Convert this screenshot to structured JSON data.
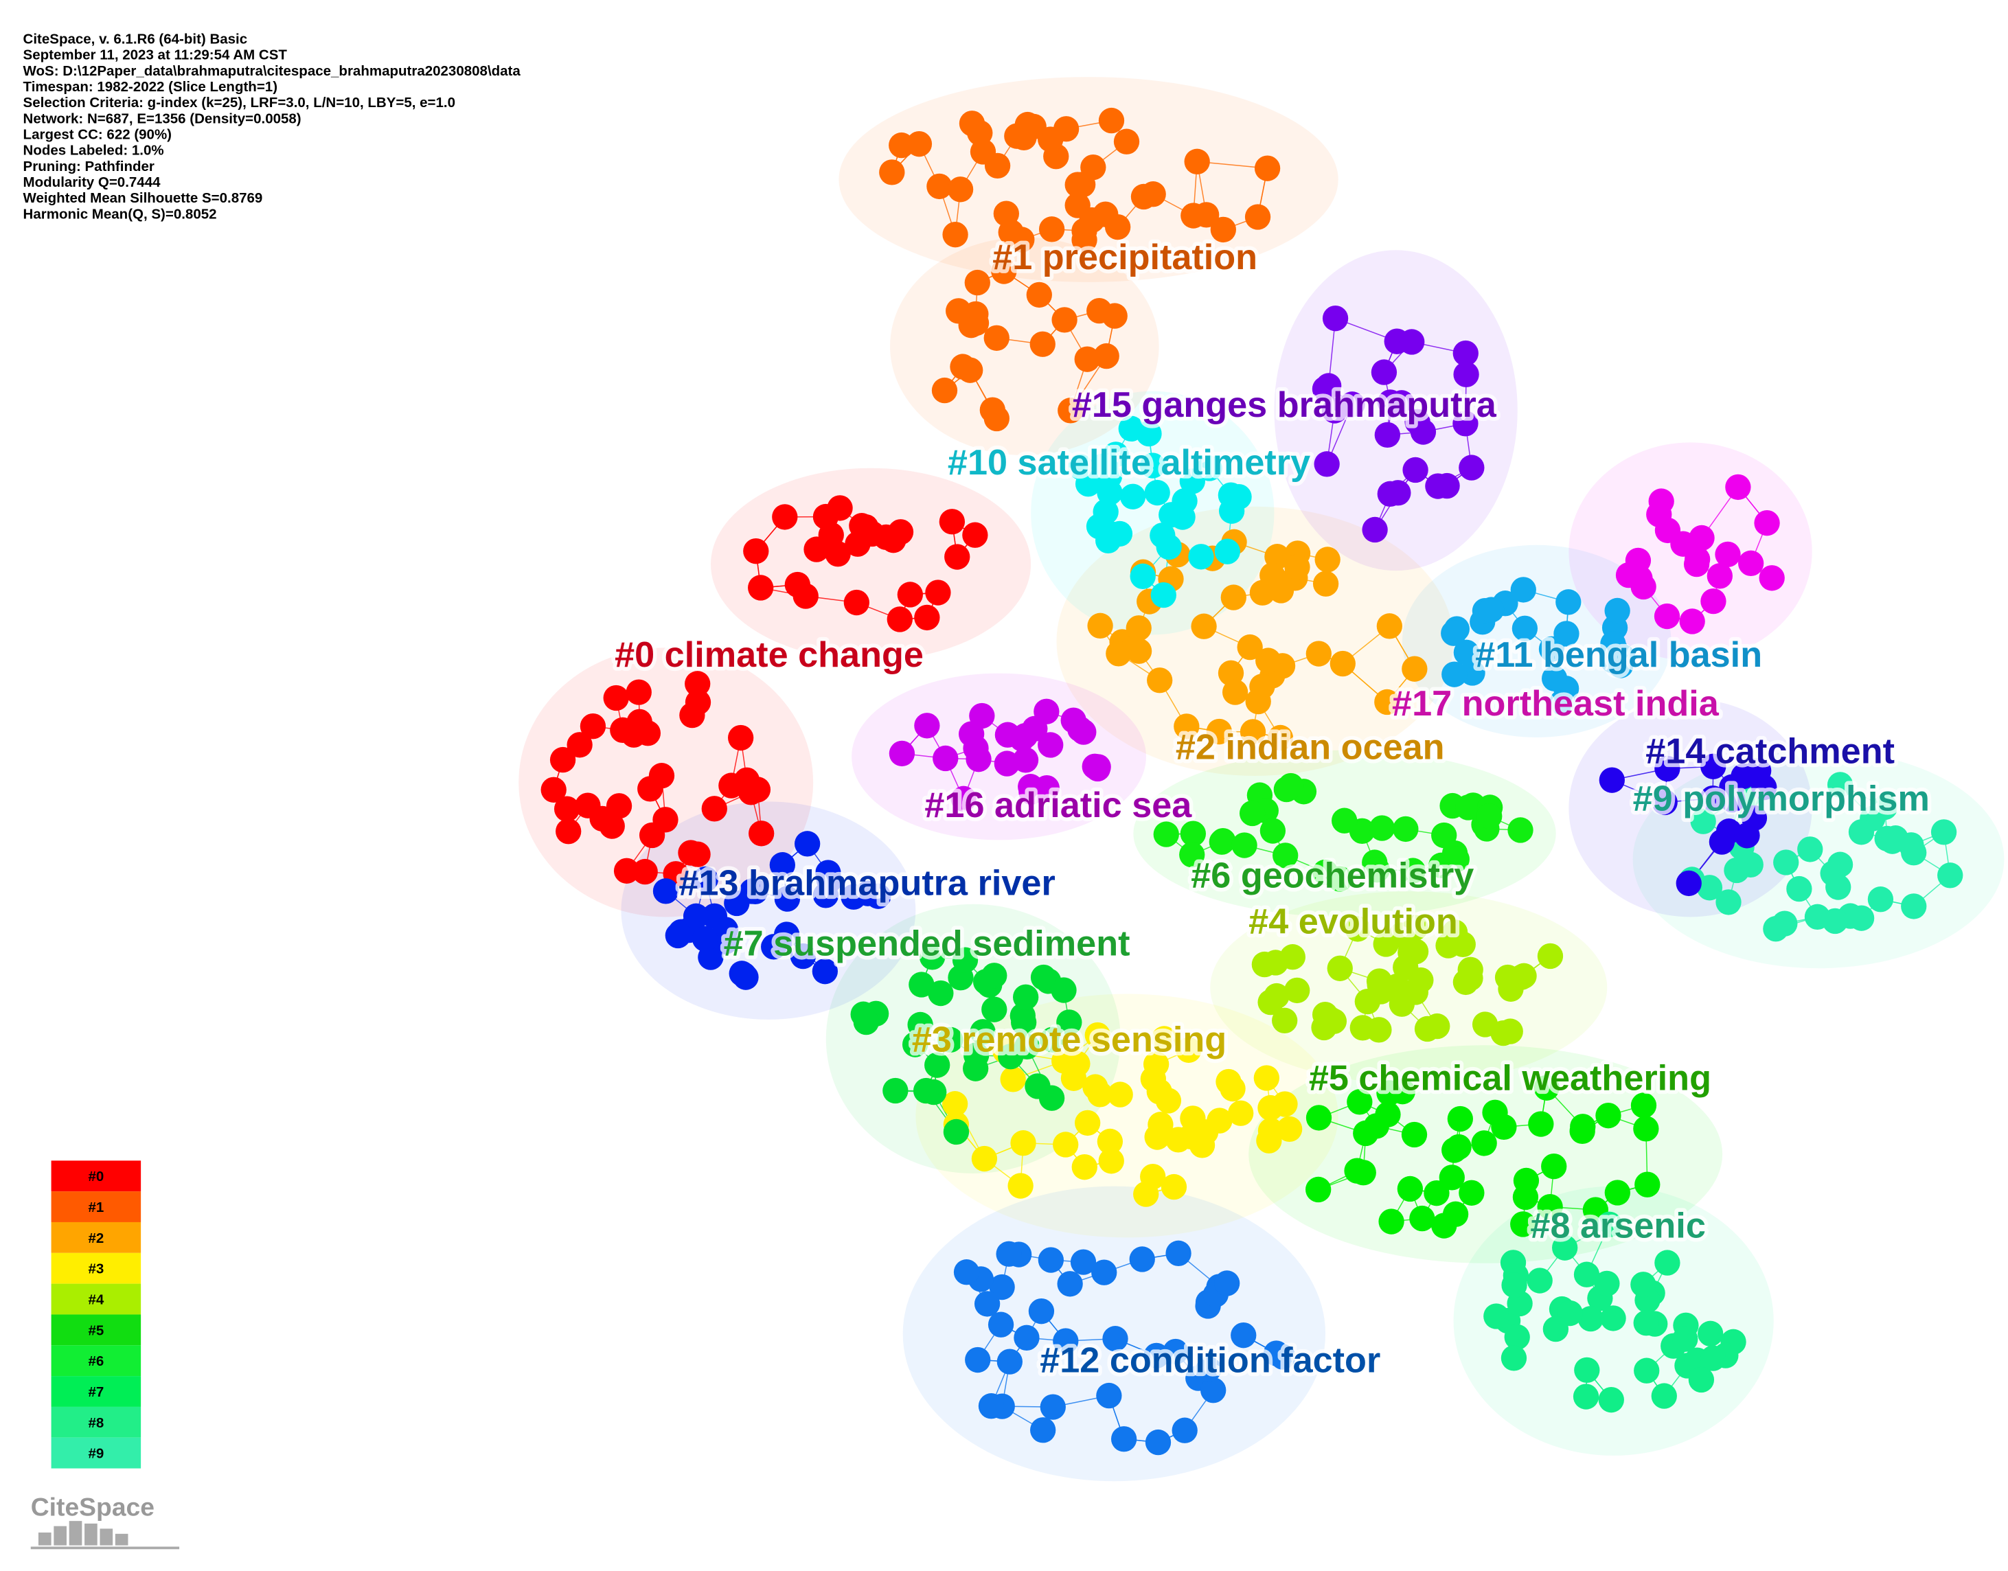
{
  "header": {
    "lines": [
      "CiteSpace, v. 6.1.R6 (64-bit) Basic",
      "September 11, 2023 at 11:29:54 AM CST",
      "WoS: D:\\12Paper_data\\brahmaputra\\citespace_brahmaputra20230808\\data",
      "Timespan: 1982-2022 (Slice Length=1)",
      "Selection Criteria: g-index (k=25), LRF=3.0, L/N=10, LBY=5, e=1.0",
      "Network: N=687, E=1356 (Density=0.0058)",
      "Largest CC: 622 (90%)",
      "Nodes Labeled: 1.0%",
      "Pruning: Pathfinder",
      "Modularity Q=0.7444",
      "Weighted Mean Silhouette S=0.8769",
      "Harmonic Mean(Q, S)=0.8052"
    ]
  },
  "clusters": [
    {
      "label": "#0 climate change",
      "label_color": "#c8001a",
      "node_color": "#ff0000"
    },
    {
      "label": "#1 precipitation",
      "label_color": "#cc5200",
      "node_color": "#ff6a00"
    },
    {
      "label": "#2 indian ocean",
      "label_color": "#cc8a00",
      "node_color": "#ffa500"
    },
    {
      "label": "#3 remote sensing",
      "label_color": "#c8b000",
      "node_color": "#ffee00"
    },
    {
      "label": "#4 evolution",
      "label_color": "#99b800",
      "node_color": "#aaee00"
    },
    {
      "label": "#5 chemical weathering",
      "label_color": "#22a000",
      "node_color": "#00ee00"
    },
    {
      "label": "#6 geochemistry",
      "label_color": "#22a022",
      "node_color": "#11ee11"
    },
    {
      "label": "#7 suspended sediment",
      "label_color": "#1ea030",
      "node_color": "#00dd33"
    },
    {
      "label": "#8 arsenic",
      "label_color": "#1ea070",
      "node_color": "#11ee88"
    },
    {
      "label": "#9 polymorphism",
      "label_color": "#1aa088",
      "node_color": "#22eeaa"
    },
    {
      "label": "#10 satellite altimetry",
      "label_color": "#10b8c8",
      "node_color": "#00eeee"
    },
    {
      "label": "#11 bengal basin",
      "label_color": "#1090c8",
      "node_color": "#11aaee"
    },
    {
      "label": "#12 condition factor",
      "label_color": "#0050a8",
      "node_color": "#1177ee"
    },
    {
      "label": "#13 brahmaputra river",
      "label_color": "#0030a8",
      "node_color": "#0022ee"
    },
    {
      "label": "#14 catchment",
      "label_color": "#1a10a8",
      "node_color": "#2200ee"
    },
    {
      "label": "#15 ganges brahmaputra",
      "label_color": "#6a00b8",
      "node_color": "#7700ee"
    },
    {
      "label": "#16 adriatic sea",
      "label_color": "#9a00a8",
      "node_color": "#cc00ee"
    },
    {
      "label": "#17 northeast india",
      "label_color": "#c810a8",
      "node_color": "#ee00ee"
    }
  ],
  "legend": [
    {
      "label": "#0",
      "color": "#ff0000"
    },
    {
      "label": "#1",
      "color": "#ff5a00"
    },
    {
      "label": "#2",
      "color": "#ffa500"
    },
    {
      "label": "#3",
      "color": "#ffee00"
    },
    {
      "label": "#4",
      "color": "#aaee00"
    },
    {
      "label": "#5",
      "color": "#11dd11"
    },
    {
      "label": "#6",
      "color": "#11ee33"
    },
    {
      "label": "#7",
      "color": "#00ee55"
    },
    {
      "label": "#8",
      "color": "#22ee88"
    },
    {
      "label": "#9",
      "color": "#33eeaa"
    }
  ],
  "logo": "CiteSpace"
}
